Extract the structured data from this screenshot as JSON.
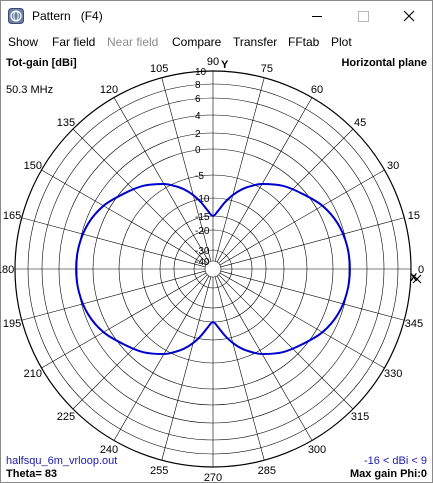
{
  "window": {
    "title": "Pattern   (F4)",
    "icon": "pattern-app-icon"
  },
  "menu": [
    {
      "label": "Show",
      "enabled": true
    },
    {
      "label": "Far field",
      "enabled": true
    },
    {
      "label": "Near field",
      "enabled": false
    },
    {
      "label": "Compare",
      "enabled": true
    },
    {
      "label": "Transfer",
      "enabled": true
    },
    {
      "label": "FFtab",
      "enabled": true
    },
    {
      "label": "Plot",
      "enabled": true
    }
  ],
  "plot": {
    "top_left_label": "Tot-gain [dBi]",
    "top_right_label": "Horizontal plane",
    "frequency": "50.3 MHz",
    "file_name": "halfsqu_6m_vrloop.out",
    "theta": "Theta= 83",
    "gain_range": "-16 < dBi < 9",
    "max_gain": "Max gain Phi:0",
    "y_axis_label": "Y",
    "x_axis_label": "X",
    "colors": {
      "pattern": "#0000cc",
      "grid": "#000000",
      "info_text": "#1a1ab0"
    }
  },
  "chart_data": {
    "type": "polar",
    "title": "Horizontal plane",
    "ylabel": "Tot-gain [dBi]",
    "angle_ticks": [
      "0",
      "15",
      "30",
      "45",
      "60",
      "75",
      "90",
      "105",
      "120",
      "135",
      "150",
      "165",
      "180",
      "195",
      "210",
      "225",
      "240",
      "255",
      "270",
      "285",
      "300",
      "315",
      "330",
      "345"
    ],
    "radial_ticks": [
      "10",
      "8",
      "6",
      "4",
      "2",
      "0",
      "-5",
      "-10",
      "-15",
      "-20",
      "-30",
      "-40"
    ],
    "series": [
      {
        "phi_deg": [
          0,
          10,
          20,
          30,
          40,
          50,
          60,
          65,
          70,
          75,
          80,
          85,
          90,
          95,
          100,
          105,
          110,
          115,
          120,
          130,
          140,
          150,
          160,
          170,
          180,
          190,
          200,
          210,
          220,
          230,
          240,
          245,
          250,
          255,
          260,
          265,
          270,
          275,
          280,
          285,
          290,
          295,
          300,
          310,
          320,
          330,
          340,
          350
        ],
        "gain_dbi": [
          2.1,
          2.0,
          1.6,
          0.8,
          -0.6,
          -2.2,
          -4.2,
          -5.5,
          -7.0,
          -8.8,
          -11.0,
          -13.5,
          -15.0,
          -13.5,
          -11.0,
          -8.8,
          -7.0,
          -5.5,
          -4.2,
          -2.2,
          -0.6,
          0.8,
          1.6,
          2.0,
          2.1,
          2.0,
          1.6,
          0.8,
          -0.6,
          -2.2,
          -4.2,
          -5.5,
          -7.0,
          -8.8,
          -11.0,
          -13.5,
          -15.0,
          -13.5,
          -11.0,
          -8.8,
          -7.0,
          -5.5,
          -4.2,
          -2.2,
          -0.6,
          0.8,
          1.6,
          2.0
        ]
      }
    ]
  }
}
